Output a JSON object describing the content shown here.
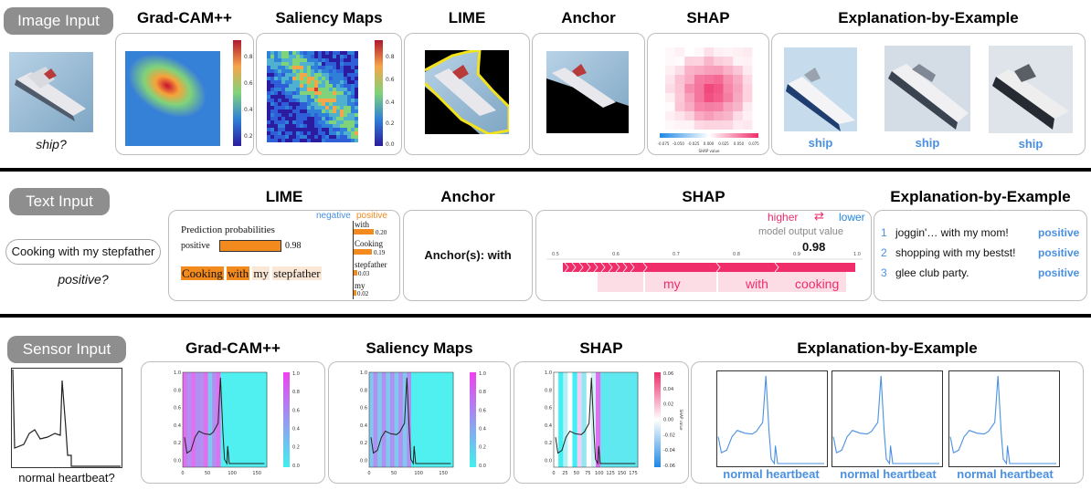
{
  "image_row": {
    "input_label": "Image Input",
    "input_caption": "ship?",
    "methods": {
      "gradcam": "Grad-CAM++",
      "saliency": "Saliency Maps",
      "lime": "LIME",
      "anchor": "Anchor",
      "shap": "SHAP",
      "example": "Explanation-by-Example"
    },
    "gradcam_ticks": [
      "0.8",
      "0.6",
      "0.4",
      "0.2"
    ],
    "saliency_ticks": [
      "0.8",
      "0.6",
      "0.4",
      "0.2",
      "0.0"
    ],
    "shap_axis": [
      "-0.075",
      "-0.050",
      "-0.025",
      "0.000",
      "0.025",
      "0.050",
      "0.075"
    ],
    "shap_axis_label": "SHAP value",
    "examples": [
      "ship",
      "ship",
      "ship"
    ]
  },
  "text_row": {
    "input_label": "Text Input",
    "input_sentence": "Cooking with my stepfather",
    "input_caption": "positive?",
    "methods": {
      "lime": "LIME",
      "anchor": "Anchor",
      "shap": "SHAP",
      "example": "Explanation-by-Example"
    },
    "lime": {
      "negative": "negative",
      "positive": "positive",
      "pred_title": "Prediction probabilities",
      "pred_class": "positive",
      "pred_value": "0.98",
      "words": [
        {
          "word": "with",
          "value": "0.20"
        },
        {
          "word": "Cooking",
          "value": "0.19"
        },
        {
          "word": "stepfather",
          "value": "0.03"
        },
        {
          "word": "my",
          "value": "0.02"
        }
      ],
      "highlight_words": [
        "Cooking",
        "with",
        "my",
        "stepfather"
      ]
    },
    "anchor_text": "Anchor(s): with",
    "shap": {
      "higher": "higher",
      "arrows": "⇄",
      "lower": "lower",
      "output_label": "model output value",
      "output_value": "0.98",
      "axis": [
        "0.5",
        "0.6",
        "0.7",
        "0.8",
        "0.9",
        "1.0"
      ],
      "words": [
        "my",
        "with",
        "cooking"
      ]
    },
    "examples": [
      {
        "num": "1",
        "text": "joggin'… with my mom!",
        "label": "positive"
      },
      {
        "num": "2",
        "text": "shopping with my bestst!",
        "label": "positive"
      },
      {
        "num": "3",
        "text": "glee club party.",
        "label": "positive"
      }
    ]
  },
  "sensor_row": {
    "input_label": "Sensor Input",
    "input_caption": "normal heartbeat?",
    "methods": {
      "gradcam": "Grad-CAM++",
      "saliency": "Saliency Maps",
      "shap": "SHAP",
      "example": "Explanation-by-Example"
    },
    "y_ticks": [
      "1.0",
      "0.8",
      "0.6",
      "0.4",
      "0.2",
      "0.0"
    ],
    "x_ticks": [
      "0",
      "50",
      "100",
      "150"
    ],
    "cbar_ticks": [
      "1.0",
      "0.8",
      "0.6",
      "0.4",
      "0.2",
      "0.0"
    ],
    "shap_cbar_ticks": [
      "0.06",
      "0.04",
      "0.02",
      "0.00",
      "-0.02",
      "-0.04",
      "-0.06"
    ],
    "shap_cbar_label": "SHAP value",
    "shap_x_ticks": [
      "0",
      "25",
      "50",
      "75",
      "100",
      "125",
      "150",
      "175"
    ],
    "examples": [
      "normal heartbeat",
      "normal heartbeat",
      "normal heartbeat"
    ]
  },
  "colors": {
    "pill": "#8e8e8e",
    "example_blue": "#4a90e2",
    "lime_orange": "#f28a1e",
    "shap_pink": "#ef2d6a",
    "shap_blue": "#1e88e5",
    "cyan": "#40f0f0",
    "magenta": "#e040f0"
  }
}
